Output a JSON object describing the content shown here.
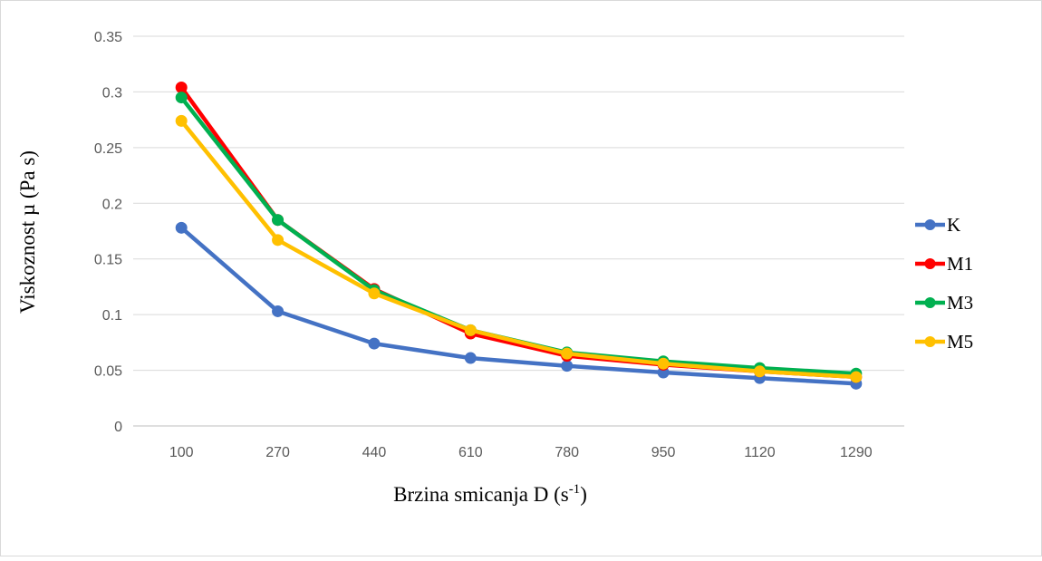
{
  "chart_data": {
    "type": "line",
    "xlabel": "Brzina smicanja D",
    "xlabel_unit_base": "s",
    "xlabel_unit_exp": "-1",
    "ylabel": "Viskoznost  µ (Pa s)",
    "categories": [
      "100",
      "270",
      "440",
      "610",
      "780",
      "950",
      "1120",
      "1290"
    ],
    "ylim": [
      0,
      0.35
    ],
    "yticks": [
      "0",
      "0.05",
      "0.1",
      "0.15",
      "0.2",
      "0.25",
      "0.3",
      "0.35"
    ],
    "grid": "horizontal",
    "legend_position": "right",
    "series": [
      {
        "name": "K",
        "color": "#4472C4",
        "values": [
          0.178,
          0.103,
          0.074,
          0.061,
          0.054,
          0.048,
          0.043,
          0.038
        ]
      },
      {
        "name": "M1",
        "color": "#FF0000",
        "values": [
          0.304,
          0.185,
          0.123,
          0.083,
          0.063,
          0.055,
          0.049,
          0.044
        ]
      },
      {
        "name": "M3",
        "color": "#00B050",
        "values": [
          0.295,
          0.185,
          0.122,
          0.086,
          0.066,
          0.058,
          0.052,
          0.047
        ]
      },
      {
        "name": "M5",
        "color": "#FFC000",
        "values": [
          0.274,
          0.167,
          0.119,
          0.086,
          0.065,
          0.056,
          0.049,
          0.044
        ]
      }
    ]
  }
}
